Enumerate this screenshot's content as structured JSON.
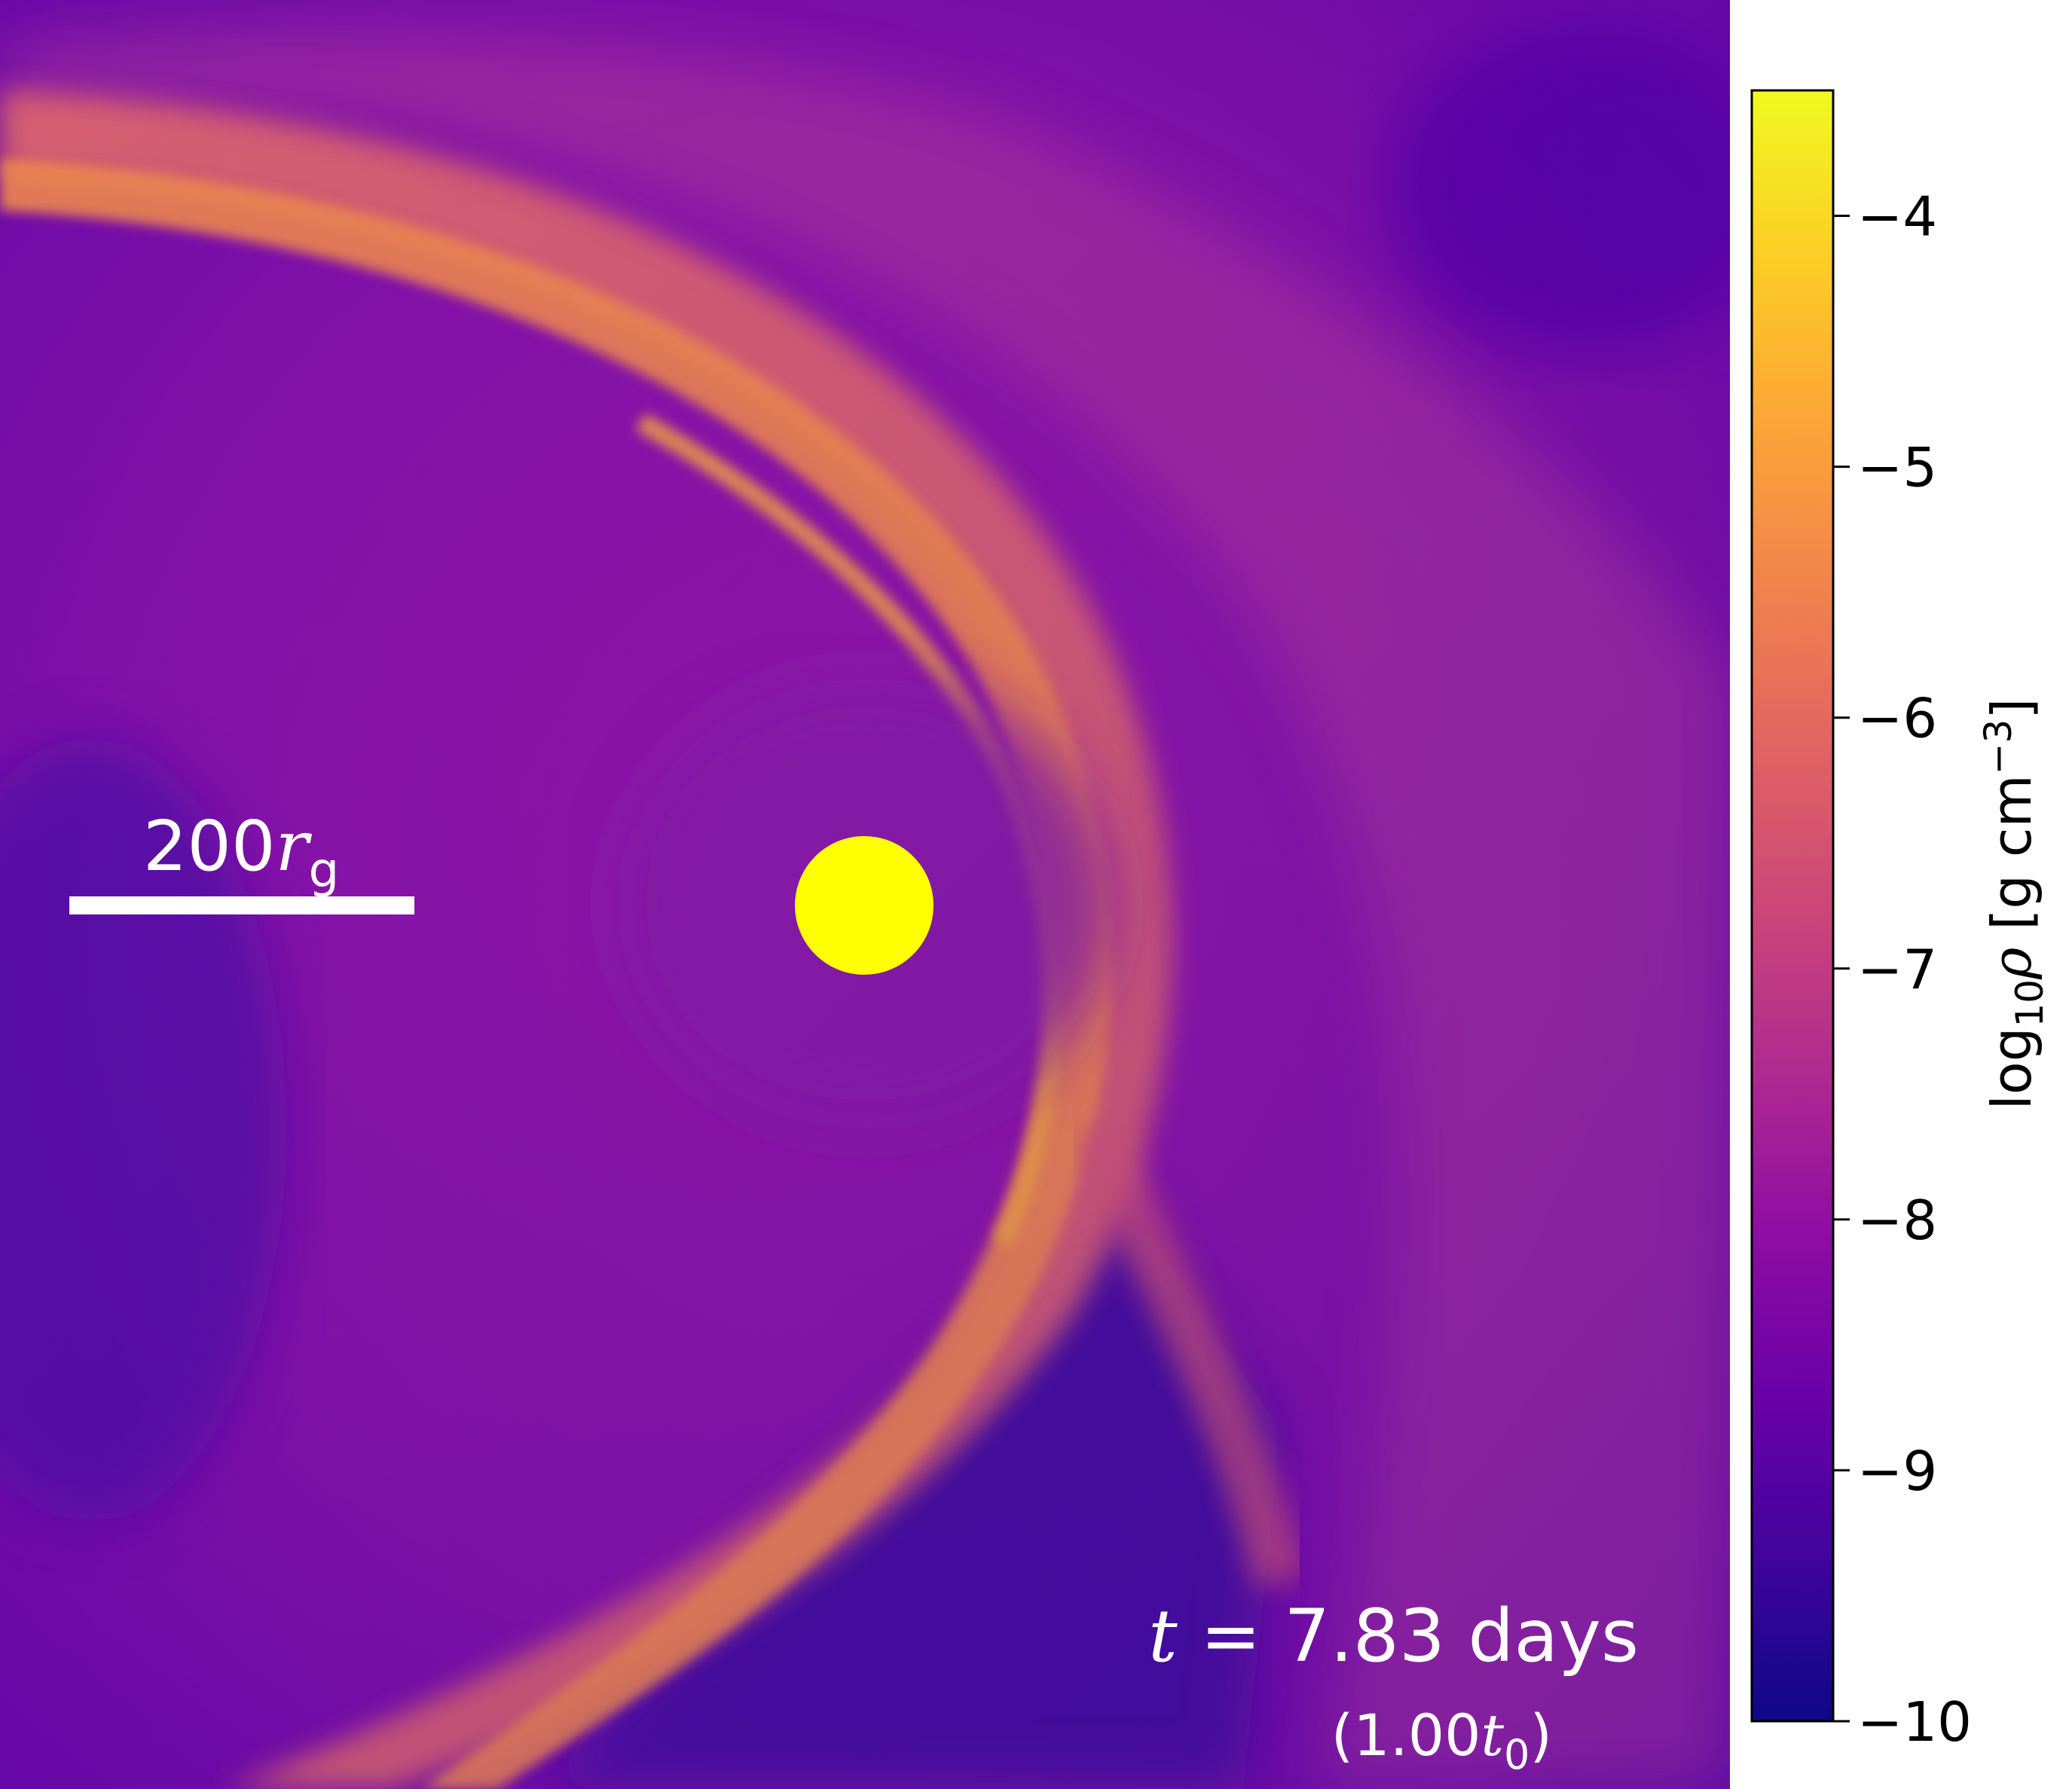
{
  "chart_data": {
    "type": "heatmap",
    "title": "",
    "quantity": "density",
    "colormap": "plasma",
    "colorbar": {
      "label_prefix": "log",
      "label_sub": "10",
      "label_symbol": "ρ",
      "label_units_open": " [g cm",
      "label_units_sup": "−3",
      "label_units_close": "]",
      "range": [
        -10,
        -3.5
      ],
      "ticks": [
        -4,
        -5,
        -6,
        -7,
        -8,
        -9,
        -10
      ],
      "tick_labels": [
        "−4",
        "−5",
        "−6",
        "−7",
        "−8",
        "−9",
        "−10"
      ],
      "orientation": "vertical",
      "placement": "right"
    },
    "scale_bar": {
      "value": "200",
      "symbol": "r",
      "sub": "g"
    },
    "time_annotation": {
      "symbol": "t",
      "equals": " = ",
      "value": "7.83",
      "unit": " days",
      "paren_open": "(",
      "ratio": "1.00",
      "ratio_symbol": "t",
      "ratio_sub": "0",
      "paren_close": ")"
    },
    "central_object": {
      "color": "#ffff00"
    },
    "colors": {
      "background": "#8a12a8",
      "stream_dense": "#f9a13a",
      "stream_mid": "#e06a6a",
      "stream_low": "#b83a9a",
      "void": "#3c079c"
    }
  }
}
